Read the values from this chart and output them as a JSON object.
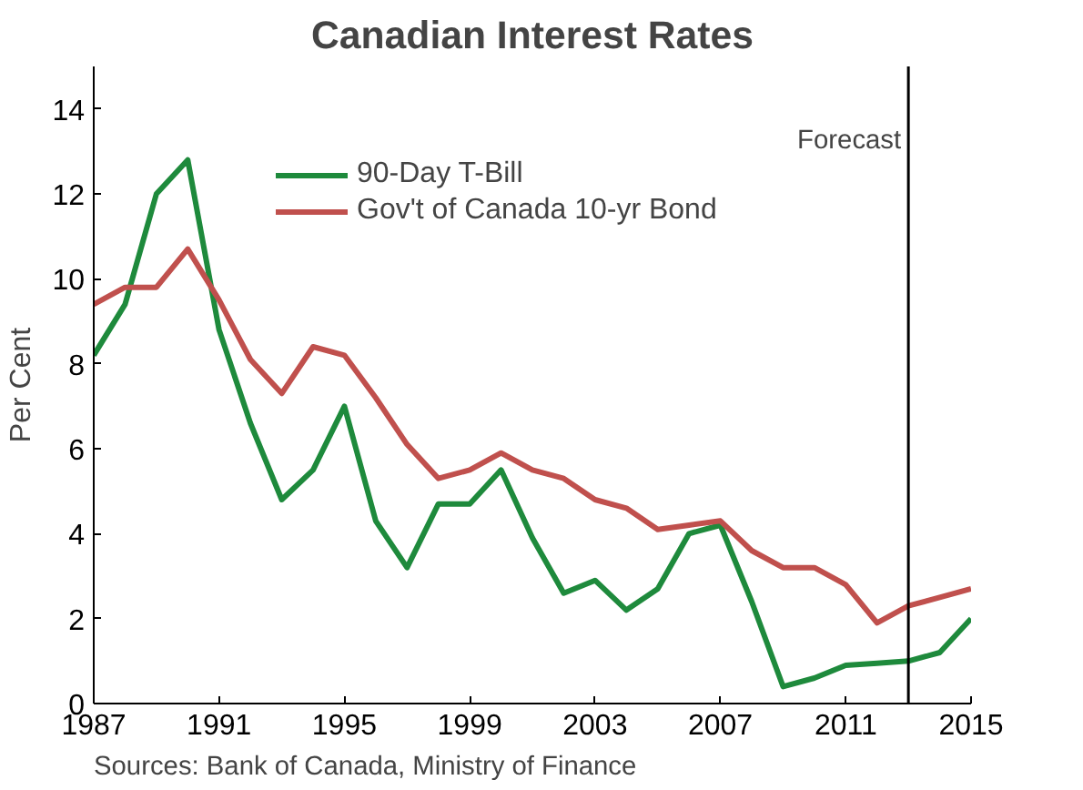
{
  "chart_data": {
    "type": "line",
    "title": "Canadian Interest Rates",
    "ylabel": "Per Cent",
    "x": [
      1987,
      1988,
      1989,
      1990,
      1991,
      1992,
      1993,
      1994,
      1995,
      1996,
      1997,
      1998,
      1999,
      2000,
      2001,
      2002,
      2003,
      2004,
      2005,
      2006,
      2007,
      2008,
      2009,
      2010,
      2011,
      2012,
      2013,
      2014,
      2015
    ],
    "series": [
      {
        "name": "90-Day T-Bill",
        "color": "#1e8a3c",
        "values": [
          8.2,
          9.4,
          12.0,
          12.8,
          8.8,
          6.6,
          4.8,
          5.5,
          7.0,
          4.3,
          3.2,
          4.7,
          4.7,
          5.5,
          3.9,
          2.6,
          2.9,
          2.2,
          2.7,
          4.0,
          4.2,
          2.4,
          0.4,
          0.6,
          0.9,
          0.95,
          1.0,
          1.2,
          2.0
        ]
      },
      {
        "name": "Gov't of Canada 10-yr Bond",
        "color": "#c0504d",
        "values": [
          9.4,
          9.8,
          9.8,
          10.7,
          9.5,
          8.1,
          7.3,
          8.4,
          8.2,
          7.2,
          6.1,
          5.3,
          5.5,
          5.9,
          5.5,
          5.3,
          4.8,
          4.6,
          4.1,
          4.2,
          4.3,
          3.6,
          3.2,
          3.2,
          2.8,
          1.9,
          2.3,
          2.5,
          2.7
        ]
      }
    ],
    "xlim": [
      1987,
      2015
    ],
    "xticks": [
      1987,
      1991,
      1995,
      1999,
      2003,
      2007,
      2011,
      2015
    ],
    "ylim": [
      0,
      15
    ],
    "yticks": [
      0,
      2,
      4,
      6,
      8,
      10,
      12,
      14
    ],
    "ref_lines": [
      {
        "axis": "x",
        "value": 2013,
        "label": "Forecast",
        "color": "#000000"
      }
    ],
    "legend": "top left",
    "grid": false,
    "line_style": "solid",
    "annotations": [
      "Sources: Bank of Canada, Ministry of Finance"
    ]
  }
}
